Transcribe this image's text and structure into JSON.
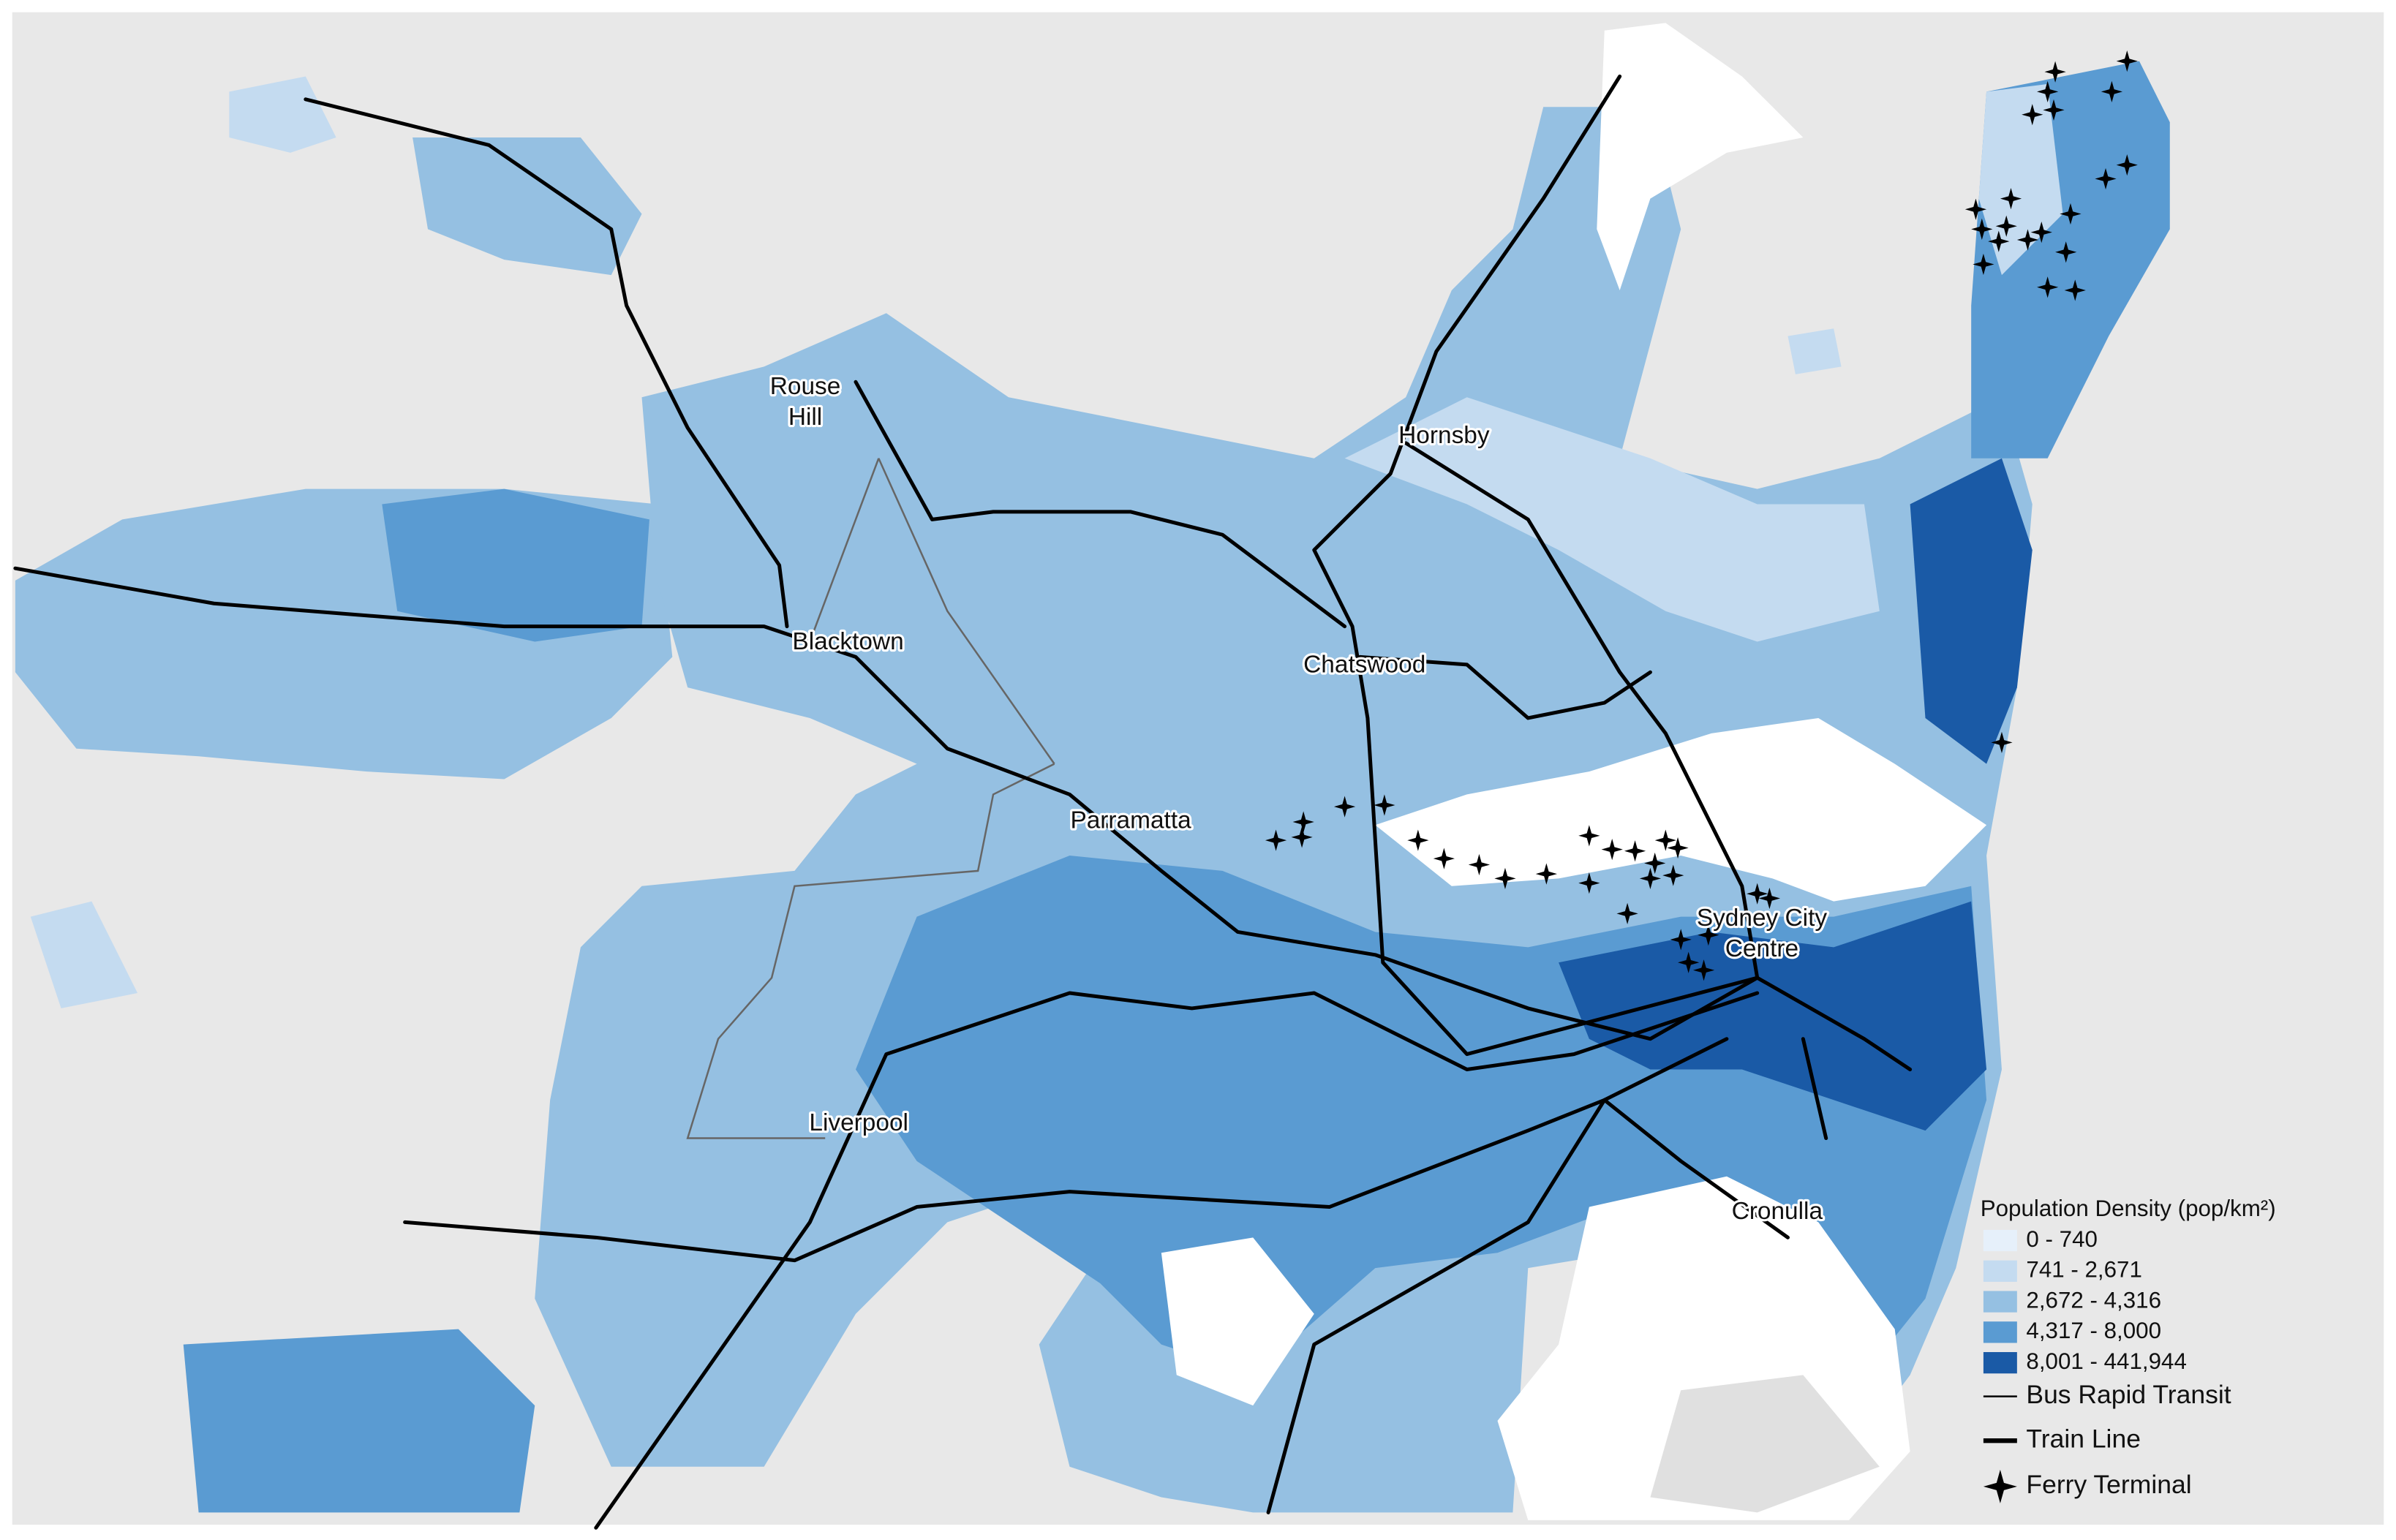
{
  "map": {
    "places": [
      [
        "Rouse",
        "Hill"
      ],
      [
        "Hornsby"
      ],
      [
        "Blacktown"
      ],
      [
        "Chatswood"
      ],
      [
        "Parramatta"
      ],
      [
        "Sydney City",
        "Centre"
      ],
      [
        "Liverpool"
      ],
      [
        "Cronulla"
      ]
    ],
    "legend": {
      "title": "Population Density (pop/km²)",
      "classes": [
        {
          "label": "0 - 740",
          "color": "#e6f0fa"
        },
        {
          "label": "741 - 2,671",
          "color": "#c4dbf0"
        },
        {
          "label": "2,672 - 4,316",
          "color": "#95c0e2"
        },
        {
          "label": "4,317 - 8,000",
          "color": "#5a9bd2"
        },
        {
          "label": "8,001 - 441,944",
          "color": "#1a5aa6"
        }
      ],
      "layers": [
        "Bus Rapid Transit",
        "Train Line",
        "Ferry Terminal"
      ]
    }
  }
}
